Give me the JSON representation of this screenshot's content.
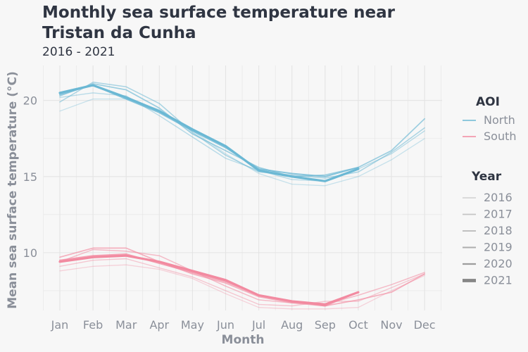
{
  "title": "Monthly sea surface temperature near Tristan da Cunha",
  "subtitle": "2016 - 2021",
  "colors": {
    "North": "#6bb8d4",
    "South": "#f28aa0",
    "background": "#f7f7f7",
    "grid": "#e4e4e4"
  },
  "legend": {
    "aoi_title": "AOI",
    "aoi_items": [
      "North",
      "South"
    ],
    "year_title": "Year",
    "year_items": [
      "2016",
      "2017",
      "2018",
      "2019",
      "2020",
      "2021"
    ]
  },
  "chart_data": {
    "type": "line",
    "title": "Monthly sea surface temperature near Tristan da Cunha",
    "subtitle": "2016 - 2021",
    "xlabel": "Month",
    "ylabel": "Mean sea surface temperature (°C)",
    "categories": [
      "Jan",
      "Feb",
      "Mar",
      "Apr",
      "May",
      "Jun",
      "Jul",
      "Aug",
      "Sep",
      "Oct",
      "Nov",
      "Dec"
    ],
    "y_ticks": [
      10,
      15,
      20
    ],
    "ylim": [
      6.2,
      22.3
    ],
    "grid": true,
    "legend_position": "right",
    "series": [
      {
        "aoi": "North",
        "year": "2016",
        "values": [
          19.3,
          20.1,
          20.1,
          19.4,
          18.0,
          16.5,
          15.2,
          14.5,
          14.4,
          15.0,
          16.1,
          17.5
        ]
      },
      {
        "aoi": "North",
        "year": "2017",
        "values": [
          20.2,
          20.5,
          20.3,
          19.0,
          17.6,
          16.2,
          15.4,
          14.8,
          14.7,
          15.5,
          16.5,
          18.0
        ]
      },
      {
        "aoi": "North",
        "year": "2018",
        "values": [
          19.9,
          21.2,
          20.9,
          19.8,
          17.9,
          16.4,
          15.3,
          15.1,
          14.9,
          15.3,
          16.6,
          18.2
        ]
      },
      {
        "aoi": "North",
        "year": "2019",
        "values": [
          20.3,
          21.1,
          20.7,
          19.5,
          17.8,
          16.7,
          15.6,
          15.0,
          15.1,
          15.6,
          16.7,
          18.8
        ]
      },
      {
        "aoi": "North",
        "year": "2020",
        "values": [
          20.4,
          21.0,
          20.1,
          19.2,
          18.0,
          16.9,
          15.5,
          15.2,
          15.0,
          15.6,
          null,
          null
        ]
      },
      {
        "aoi": "North",
        "year": "2021",
        "values": [
          20.5,
          21.0,
          20.2,
          19.3,
          18.1,
          17.0,
          15.4,
          15.0,
          14.7,
          15.5,
          null,
          null
        ]
      },
      {
        "aoi": "South",
        "year": "2016",
        "values": [
          8.8,
          9.1,
          9.2,
          8.9,
          8.3,
          7.3,
          6.4,
          6.3,
          6.3,
          6.4,
          7.5,
          8.5
        ]
      },
      {
        "aoi": "South",
        "year": "2017",
        "values": [
          9.1,
          9.5,
          9.6,
          9.0,
          8.4,
          7.5,
          6.6,
          6.5,
          6.8,
          6.8,
          7.7,
          8.6
        ]
      },
      {
        "aoi": "South",
        "year": "2018",
        "values": [
          9.4,
          10.2,
          10.1,
          9.8,
          8.8,
          7.8,
          6.9,
          6.7,
          6.6,
          7.2,
          7.9,
          8.7
        ]
      },
      {
        "aoi": "South",
        "year": "2019",
        "values": [
          9.7,
          10.3,
          10.3,
          9.4,
          8.6,
          8.0,
          7.1,
          6.7,
          6.5,
          6.9,
          7.4,
          8.6
        ]
      },
      {
        "aoi": "South",
        "year": "2020",
        "values": [
          9.5,
          9.8,
          9.9,
          9.3,
          8.7,
          8.1,
          7.2,
          6.8,
          6.5,
          7.4,
          null,
          null
        ]
      },
      {
        "aoi": "South",
        "year": "2021",
        "values": [
          9.4,
          9.7,
          9.8,
          9.4,
          8.8,
          8.2,
          7.2,
          6.8,
          6.6,
          7.4,
          null,
          null
        ]
      }
    ]
  }
}
